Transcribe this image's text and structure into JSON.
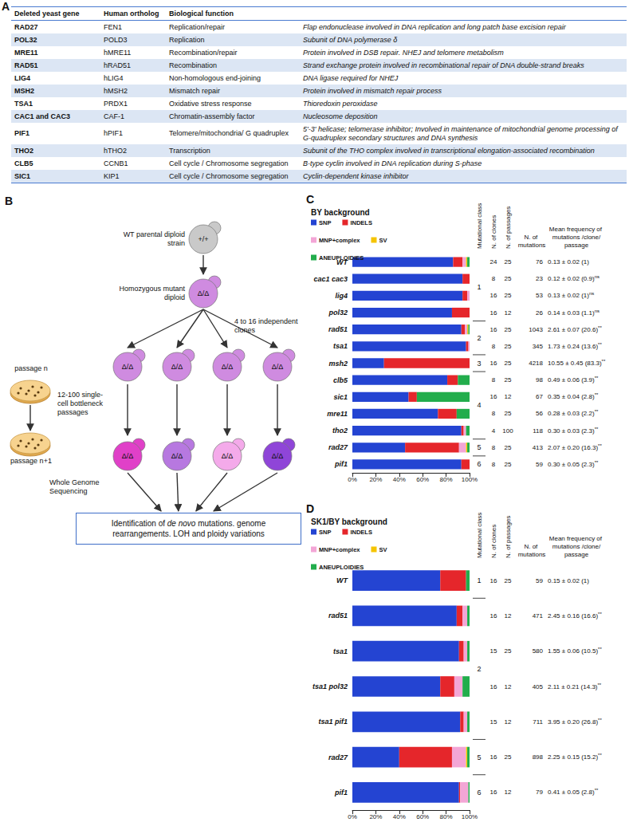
{
  "table": {
    "panel": "A",
    "headers": [
      "Deleted yeast gene",
      "Human ortholog",
      "Biological function"
    ],
    "rows": [
      [
        "RAD27",
        "FEN1",
        "Replication/repair",
        "Flap endonuclease involved in DNA replication and long patch base excision repair"
      ],
      [
        "POL32",
        "POLD3",
        "Replication",
        "Subunit of DNA polymerase δ"
      ],
      [
        "MRE11",
        "hMRE11",
        "Recombination/repair",
        "Protein involved in DSB repair. NHEJ and telomere metabolism"
      ],
      [
        "RAD51",
        "hRAD51",
        "Recombination",
        "Strand exchange protein involved in recombinational repair of DNA double-strand breaks"
      ],
      [
        "LIG4",
        "hLIG4",
        "Non-homologous end-joining",
        "DNA ligase required for NHEJ"
      ],
      [
        "MSH2",
        "hMSH2",
        "Mismatch repair",
        "Protein involved in mismatch repair process"
      ],
      [
        "TSA1",
        "PRDX1",
        "Oxidative stress response",
        "Thioredoxin peroxidase"
      ],
      [
        "CAC1 and CAC3",
        "CAF-1",
        "Chromatin-assembly factor",
        "Nucleosome deposition"
      ],
      [
        "PIF1",
        "hPIF1",
        "Telomere/mitochondria/ G quadruplex",
        "5'-3' helicase; telomerase inhibitor; Involved in maintenance of mitochondrial genome processing of G-quadruplex secondary structures and DNA synthesis"
      ],
      [
        "THO2",
        "hTHO2",
        "Transcription",
        "Subunit of the THO complex involved in transcriptional elongation-associated recombination"
      ],
      [
        "CLB5",
        "CCNB1",
        "Cell cycle / Chromosome segregation",
        "B-type cyclin involved in DNA replication during S-phase"
      ],
      [
        "SIC1",
        "KIP1",
        "Cell cycle / Chromosome segregation",
        "Cyclin-dependent kinase inhibitor"
      ]
    ]
  },
  "diagram": {
    "panel": "B",
    "parent": {
      "label": "WT parental diploid strain",
      "genotype": "+/+"
    },
    "mutant": {
      "label": "Homozygous mutant diploid",
      "genotype": "Δ/Δ"
    },
    "clones": {
      "label": "4 to 16 independent clones",
      "genotypes": [
        "Δ/Δ",
        "Δ/Δ",
        "Δ/Δ",
        "Δ/Δ"
      ]
    },
    "passages": {
      "label": "12-100 single-cell bottleneck passages",
      "before": "passage n",
      "after": "passage n+1",
      "genotypes": [
        "Δ/Δ",
        "Δ/Δ",
        "Δ/Δ",
        "Δ/Δ"
      ]
    },
    "sequencing": "Whole Genome Sequencing",
    "result": {
      "before": "Identification of ",
      "emphasis": "de novo",
      "after": " mutations. genome rearrangements. LOH and ploidy variations"
    }
  },
  "chart_data": [
    {
      "type": "bar",
      "panel": "C",
      "title": "BY background",
      "orientation": "horizontal",
      "stacked": true,
      "grid": false,
      "legend": "top-left",
      "data_labels": false,
      "categories": [
        "WT",
        "cac1 cac3",
        "lig4",
        "pol32",
        "rad51",
        "tsa1",
        "msh2",
        "clb5",
        "sic1",
        "mre11",
        "tho2",
        "rad27",
        "pif1"
      ],
      "series": [
        {
          "name": "SNP",
          "color": "#2444d2",
          "values": [
            86,
            94,
            94,
            85,
            93,
            97,
            27,
            81,
            48,
            73,
            93,
            45,
            93
          ]
        },
        {
          "name": "INDELS",
          "color": "#e5262b",
          "values": [
            8,
            6,
            4,
            15,
            3,
            2,
            73,
            9,
            7,
            16,
            2,
            46,
            7
          ]
        },
        {
          "name": "MNP+complex",
          "color": "#f3a6d6",
          "values": [
            3,
            0,
            2,
            0,
            2,
            1,
            0,
            0,
            0,
            0,
            2,
            6,
            0
          ]
        },
        {
          "name": "SV",
          "color": "#f5c400",
          "values": [
            1,
            0,
            0,
            0,
            1,
            0,
            0,
            0,
            0,
            0,
            0,
            1,
            0
          ]
        },
        {
          "name": "ANEUPLOIDIES",
          "color": "#22ad4c",
          "values": [
            2,
            0,
            0,
            0,
            1,
            0,
            0,
            10,
            45,
            11,
            3,
            2,
            0
          ]
        }
      ],
      "xlim": [
        0,
        100
      ],
      "xticks": [
        {
          "value": 0,
          "label": "0%"
        },
        {
          "value": 20,
          "label": "20%"
        },
        {
          "value": 40,
          "label": "40%"
        },
        {
          "value": 60,
          "label": "60%"
        },
        {
          "value": 80,
          "label": "80%"
        },
        {
          "value": 100,
          "label": "100%"
        }
      ],
      "side_table": {
        "headers": {
          "class": "Mutational class",
          "clones": "N. of clones",
          "passages": "N. of passages",
          "mutations": "N. of mutations",
          "frequency": "Mean frequency of mutations /clone/passage"
        },
        "clones": [
          24,
          8,
          16,
          16,
          16,
          8,
          16,
          8,
          16,
          8,
          4,
          8,
          8
        ],
        "passages": [
          25,
          25,
          25,
          12,
          25,
          25,
          25,
          25,
          12,
          25,
          100,
          25,
          25
        ],
        "mutations": [
          76,
          23,
          53,
          26,
          1043,
          345,
          4218,
          98,
          67,
          56,
          118,
          413,
          59
        ],
        "frequency": [
          {
            "label": "0.13 ± 0.02 (1)"
          },
          {
            "label": "0.12 ± 0.02 (0.9)",
            "significance": "ns"
          },
          {
            "label": "0.13 ± 0.02 (1)",
            "significance": "ns"
          },
          {
            "label": "0.14 ± 0.03 (1.1)",
            "significance": "ns"
          },
          {
            "label": "2.61 ± 0.07 (20.6)",
            "significance": "**"
          },
          {
            "label": "1.73 ± 0.24 (13.6)",
            "significance": "**"
          },
          {
            "label": "10.55 ± 0.45 (83.3)",
            "significance": "**"
          },
          {
            "label": "0.49 ± 0.06 (3.9)",
            "significance": "**"
          },
          {
            "label": "0.35 ± 0.04 (2.8)",
            "significance": "**"
          },
          {
            "label": "0.28 ± 0.03 (2.2)",
            "significance": "**"
          },
          {
            "label": "0.30 ± 0.03 (2.3)",
            "significance": "**"
          },
          {
            "label": "2.07 ± 0.20 (16.3)",
            "significance": "**"
          },
          {
            "label": "0.30 ± 0.05 (2.3)",
            "significance": "**"
          }
        ],
        "classes": [
          {
            "class": "1",
            "rows": [
              "WT",
              "cac1 cac3",
              "lig4",
              "pol32"
            ]
          },
          {
            "class": "2",
            "rows": [
              "rad51",
              "tsa1"
            ]
          },
          {
            "class": "3",
            "rows": [
              "msh2"
            ]
          },
          {
            "class": "4",
            "rows": [
              "clb5",
              "sic1",
              "mre11",
              "tho2"
            ]
          },
          {
            "class": "5",
            "rows": [
              "rad27"
            ]
          },
          {
            "class": "6",
            "rows": [
              "pif1"
            ]
          }
        ]
      }
    },
    {
      "type": "bar",
      "panel": "D",
      "title": "SK1/BY background",
      "orientation": "horizontal",
      "stacked": true,
      "grid": false,
      "legend": "top-left",
      "data_labels": false,
      "categories": [
        "WT",
        "rad51",
        "tsa1",
        "tsa1 pol32",
        "tsa1 pif1",
        "rad27",
        "pif1"
      ],
      "series": [
        {
          "name": "SNP",
          "color": "#2444d2",
          "values": [
            75,
            89,
            91,
            75,
            92,
            40,
            91
          ]
        },
        {
          "name": "INDELS",
          "color": "#e5262b",
          "values": [
            22,
            5,
            4,
            12,
            3,
            45,
            1
          ]
        },
        {
          "name": "MNP+complex",
          "color": "#f3a6d6",
          "values": [
            0,
            4,
            3,
            7,
            3,
            12,
            7
          ]
        },
        {
          "name": "SV",
          "color": "#f5c400",
          "values": [
            0,
            0,
            0,
            0,
            0,
            1,
            0
          ]
        },
        {
          "name": "ANEUPLOIDIES",
          "color": "#22ad4c",
          "values": [
            3,
            2,
            2,
            6,
            2,
            2,
            1
          ]
        }
      ],
      "xlim": [
        0,
        100
      ],
      "xticks": [
        {
          "value": 0,
          "label": "0%"
        },
        {
          "value": 20,
          "label": "20%"
        },
        {
          "value": 40,
          "label": "40%"
        },
        {
          "value": 60,
          "label": "60%"
        },
        {
          "value": 80,
          "label": "80%"
        },
        {
          "value": 100,
          "label": "100%"
        }
      ],
      "side_table": {
        "headers": {
          "class": "Mutational class",
          "clones": "N. of clones",
          "passages": "N. of passages",
          "mutations": "N. of mutations",
          "frequency": "Mean frequency of mutations /clone/passage"
        },
        "clones": [
          16,
          16,
          15,
          16,
          15,
          16,
          16
        ],
        "passages": [
          25,
          12,
          25,
          12,
          12,
          25,
          12
        ],
        "mutations": [
          59,
          471,
          580,
          405,
          711,
          898,
          79
        ],
        "frequency": [
          {
            "label": "0.15 ± 0.02 (1)"
          },
          {
            "label": "2.45 ± 0.16 (16.6)",
            "significance": "**"
          },
          {
            "label": "1.55 ± 0.06 (10.5)",
            "significance": "**"
          },
          {
            "label": "2.11 ± 0.21 (14.3)",
            "significance": "**"
          },
          {
            "label": "3.95 ± 0.20 (26.8)",
            "significance": "**"
          },
          {
            "label": "2.25 ± 0.15 (15.2)",
            "significance": "**"
          },
          {
            "label": "0.41 ± 0.05 (2.8)",
            "significance": "**"
          }
        ],
        "classes": [
          {
            "class": "1",
            "rows": [
              "WT"
            ]
          },
          {
            "class": "2",
            "rows": [
              "rad51",
              "tsa1",
              "tsa1 pol32",
              "tsa1 pif1"
            ]
          },
          {
            "class": "5",
            "rows": [
              "rad27"
            ]
          },
          {
            "class": "6",
            "rows": [
              "pif1"
            ]
          }
        ]
      }
    }
  ]
}
